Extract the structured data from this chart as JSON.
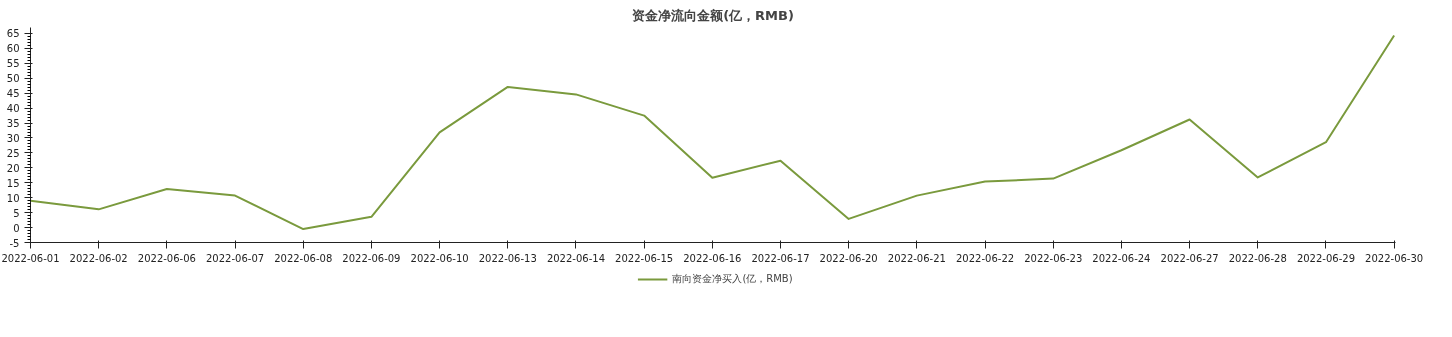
{
  "chart_data": {
    "type": "line",
    "title": "资金净流向金额(亿，RMB)",
    "categories": [
      "2022-06-01",
      "2022-06-02",
      "2022-06-06",
      "2022-06-07",
      "2022-06-08",
      "2022-06-09",
      "2022-06-10",
      "2022-06-13",
      "2022-06-14",
      "2022-06-15",
      "2022-06-16",
      "2022-06-17",
      "2022-06-20",
      "2022-06-21",
      "2022-06-22",
      "2022-06-23",
      "2022-06-24",
      "2022-06-27",
      "2022-06-28",
      "2022-06-29",
      "2022-06-30"
    ],
    "series": [
      {
        "name": "南向资金净买入(亿，RMB)",
        "color": "#7a9a3d",
        "values": [
          9.0,
          6.1,
          12.9,
          10.7,
          -0.5,
          3.6,
          31.9,
          47.1,
          44.6,
          37.5,
          16.7,
          22.4,
          2.9,
          10.7,
          15.4,
          16.4,
          25.9,
          36.2,
          16.8,
          28.6,
          64.3
        ]
      }
    ],
    "ylim": [
      -5,
      67
    ],
    "yticks": [
      -5,
      0,
      5,
      10,
      15,
      20,
      25,
      30,
      35,
      40,
      45,
      50,
      55,
      60,
      65
    ],
    "grid": false,
    "legend": "bottom",
    "marker": "none",
    "line_style": "solid"
  }
}
